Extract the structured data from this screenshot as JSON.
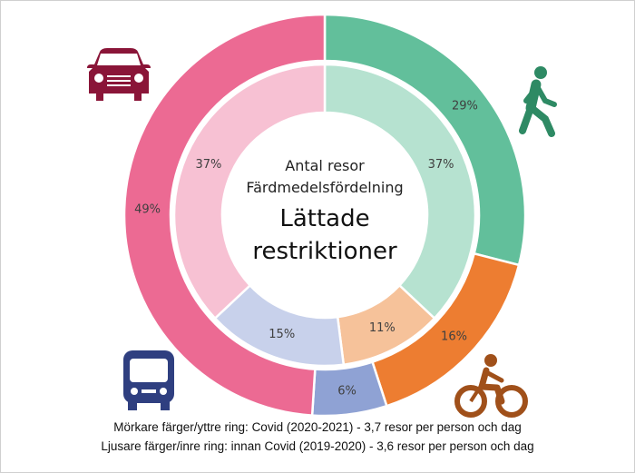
{
  "chart_data": {
    "type": "pie",
    "subtype": "double-donut",
    "center_text": {
      "line1": "Antal resor",
      "line2": "Färdmedelsfördelning",
      "line3": "Lättade",
      "line4": "restriktioner"
    },
    "categories": [
      "Gång",
      "Cykel",
      "Kollektivtrafik",
      "Bil"
    ],
    "icons": [
      "walking-person-icon",
      "bicycle-icon",
      "bus-icon",
      "car-icon"
    ],
    "series": [
      {
        "ring": "outer",
        "values": [
          29,
          16,
          6,
          49
        ],
        "labels": [
          "29%",
          "16%",
          "6%",
          "49%"
        ],
        "colors": [
          "#62bf9b",
          "#ed7d31",
          "#8fa2d4",
          "#ec6a93"
        ]
      },
      {
        "ring": "inner",
        "values": [
          37,
          11,
          15,
          37
        ],
        "labels": [
          "37%",
          "11%",
          "15%",
          "37%"
        ],
        "colors": [
          "#b6e2d0",
          "#f6c29a",
          "#c8d1eb",
          "#f7c1d3"
        ]
      }
    ],
    "icon_colors": [
      "#2e8a64",
      "#a0501a",
      "#2f3f80",
      "#8a1538"
    ]
  },
  "footnotes": [
    "Mörkare färger/yttre ring: Covid (2020-2021) - 3,7 resor per person och dag",
    "Ljusare färger/inre ring: innan Covid (2019-2020) - 3,6 resor per person och dag"
  ]
}
